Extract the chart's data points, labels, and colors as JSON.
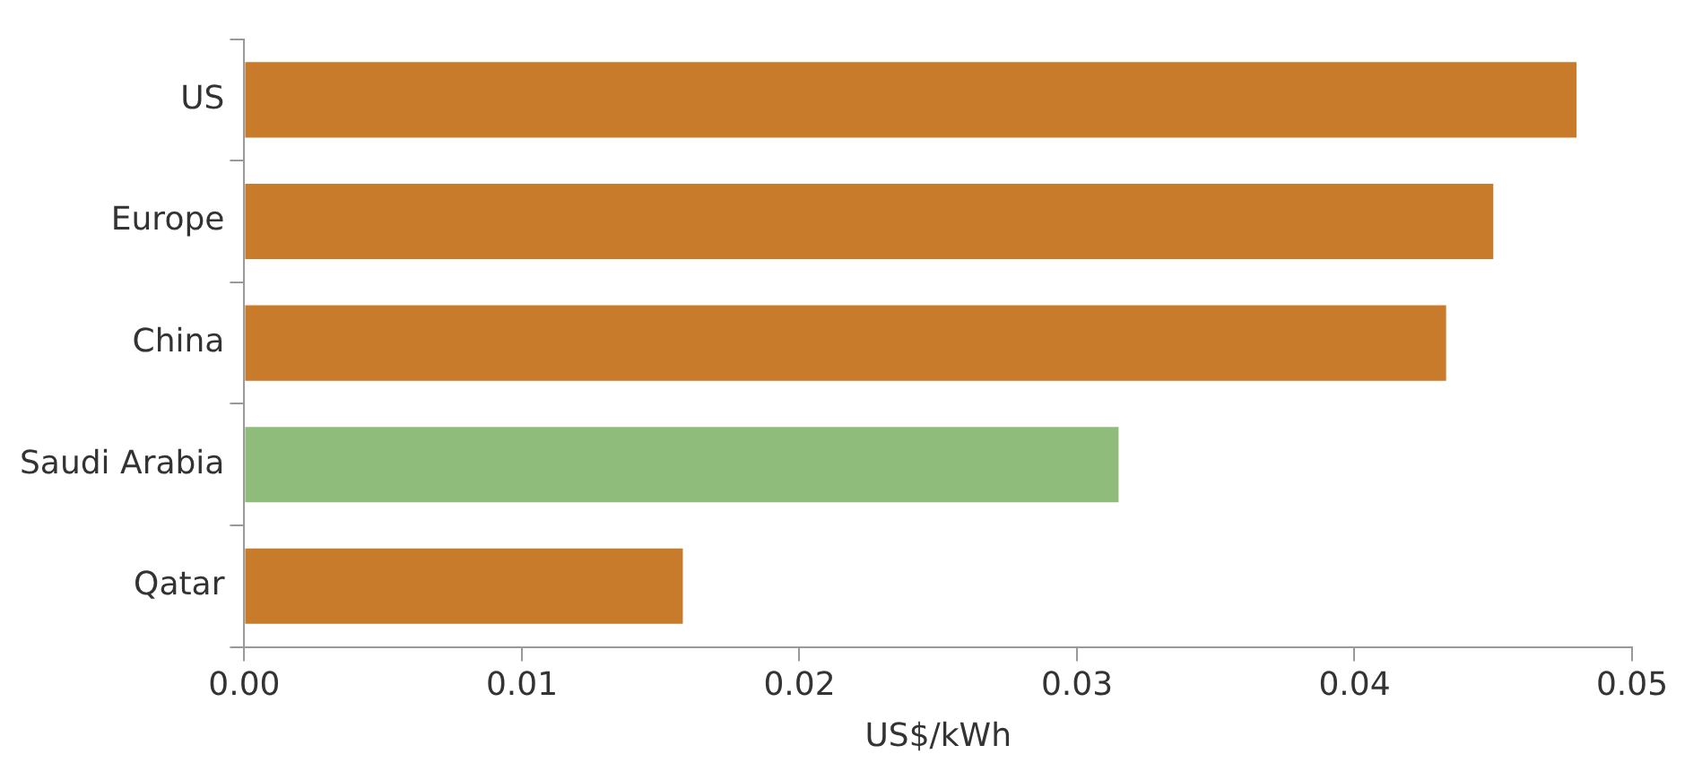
{
  "chart_data": {
    "type": "bar",
    "orientation": "horizontal",
    "xlabel": "US$/kWh",
    "categories": [
      "US",
      "Europe",
      "China",
      "Saudi Arabia",
      "Qatar"
    ],
    "values": [
      0.048,
      0.045,
      0.0433,
      0.0315,
      0.0158
    ],
    "colors": [
      "#c87b2a",
      "#c87b2a",
      "#c87b2a",
      "#8fbc7a",
      "#c87b2a"
    ],
    "xlim": [
      0,
      0.05
    ],
    "xticks": [
      {
        "value": 0,
        "label": "0.00"
      },
      {
        "value": 0.01,
        "label": "0.01"
      },
      {
        "value": 0.02,
        "label": "0.02"
      },
      {
        "value": 0.03,
        "label": "0.03"
      },
      {
        "value": 0.04,
        "label": "0.04"
      },
      {
        "value": 0.05,
        "label": "0.05"
      }
    ],
    "grid": false,
    "legend": false
  }
}
